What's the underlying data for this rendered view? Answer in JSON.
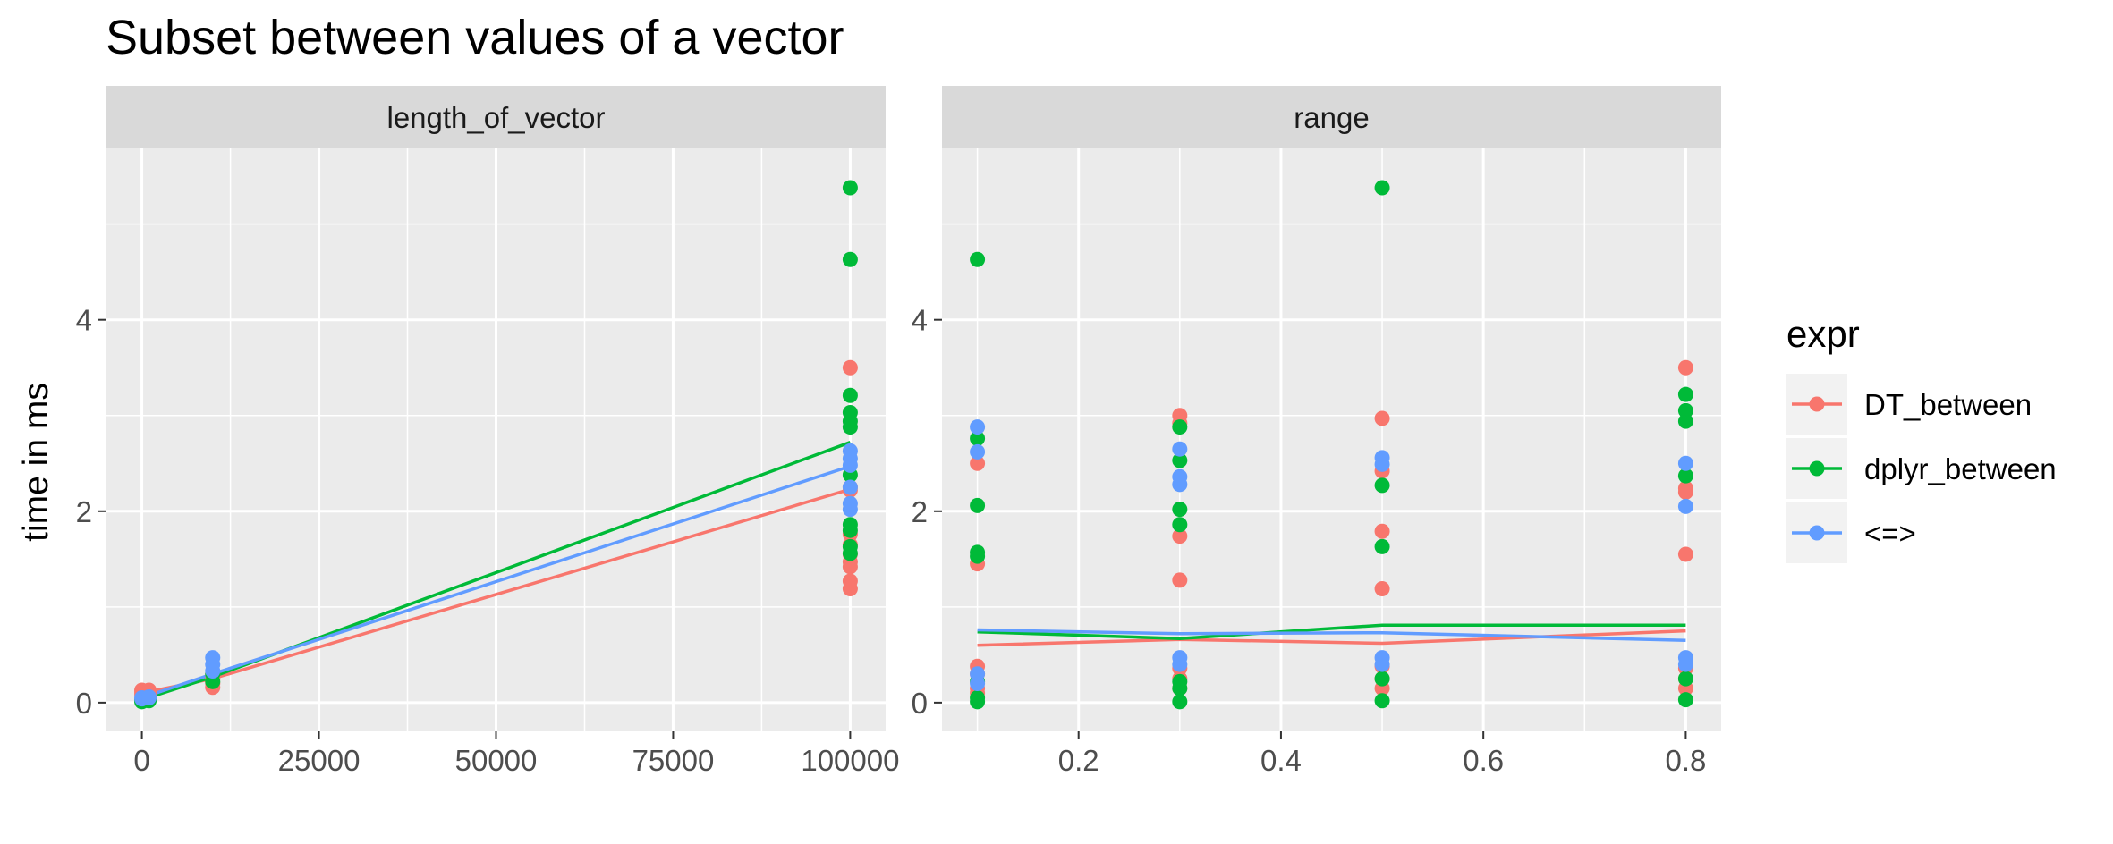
{
  "chart_data": {
    "type": "scatter",
    "title": "Subset between values of a vector",
    "ylabel": "time in ms",
    "grid": true,
    "legend": {
      "title": "expr",
      "position": "right",
      "entries": [
        "DT_between",
        "dplyr_between",
        "<=>"
      ]
    },
    "colors": {
      "DT_between": "#f8766d",
      "dplyr_between": "#00ba38",
      "<=>": "#619cff",
      "panel_background": "#ebebeb",
      "strip_background": "#d9d9d9",
      "gridline": "#ffffff"
    },
    "ylim": [
      -0.3,
      5.8
    ],
    "yticks": [
      {
        "value": 0,
        "label": "0"
      },
      {
        "value": 2,
        "label": "2"
      },
      {
        "value": 4,
        "label": "4"
      }
    ],
    "ymajor_grid": [
      0,
      2,
      4
    ],
    "yminor_grid": [
      1,
      3,
      5
    ],
    "panels": [
      {
        "strip": "length_of_vector",
        "xlim": [
          -5000,
          105000
        ],
        "xticks": [
          {
            "value": 0,
            "label": "0"
          },
          {
            "value": 25000,
            "label": "25000"
          },
          {
            "value": 50000,
            "label": "50000"
          },
          {
            "value": 75000,
            "label": "75000"
          },
          {
            "value": 100000,
            "label": "100000"
          }
        ],
        "xminor_grid": [
          12500,
          37500,
          62500,
          87500
        ],
        "series": [
          {
            "name": "DT_between",
            "points": [
              [
                0,
                0.13
              ],
              [
                0,
                0.12
              ],
              [
                0,
                0.1
              ],
              [
                0,
                0.08
              ],
              [
                1000,
                0.11
              ],
              [
                1000,
                0.13
              ],
              [
                1000,
                0.09
              ],
              [
                10000,
                0.3
              ],
              [
                10000,
                0.25
              ],
              [
                10000,
                0.2
              ],
              [
                10000,
                0.16
              ],
              [
                100000,
                3.5
              ],
              [
                100000,
                2.25
              ],
              [
                100000,
                2.22
              ],
              [
                100000,
                1.76
              ],
              [
                100000,
                1.65
              ],
              [
                100000,
                1.55
              ],
              [
                100000,
                1.47
              ],
              [
                100000,
                1.42
              ],
              [
                100000,
                1.27
              ],
              [
                100000,
                1.19
              ]
            ],
            "line": [
              [
                0,
                0.1
              ],
              [
                10000,
                0.25
              ],
              [
                100000,
                2.23
              ]
            ]
          },
          {
            "name": "dplyr_between",
            "points": [
              [
                0,
                0.03
              ],
              [
                0,
                0.01
              ],
              [
                0,
                0.02
              ],
              [
                1000,
                0.02
              ],
              [
                1000,
                0.04
              ],
              [
                1000,
                0.03
              ],
              [
                10000,
                0.22
              ],
              [
                10000,
                0.3
              ],
              [
                100000,
                5.38
              ],
              [
                100000,
                4.63
              ],
              [
                100000,
                3.21
              ],
              [
                100000,
                3.03
              ],
              [
                100000,
                2.94
              ],
              [
                100000,
                2.88
              ],
              [
                100000,
                2.38
              ],
              [
                100000,
                1.86
              ],
              [
                100000,
                1.8
              ],
              [
                100000,
                1.63
              ],
              [
                100000,
                1.56
              ]
            ],
            "line": [
              [
                0,
                0.03
              ],
              [
                10000,
                0.27
              ],
              [
                100000,
                2.72
              ]
            ]
          },
          {
            "name": "<=>",
            "points": [
              [
                0,
                0.05
              ],
              [
                0,
                0.04
              ],
              [
                1000,
                0.06
              ],
              [
                1000,
                0.05
              ],
              [
                10000,
                0.47
              ],
              [
                10000,
                0.4
              ],
              [
                10000,
                0.33
              ],
              [
                100000,
                2.63
              ],
              [
                100000,
                2.55
              ],
              [
                100000,
                2.48
              ],
              [
                100000,
                2.25
              ],
              [
                100000,
                2.08
              ],
              [
                100000,
                2.02
              ]
            ],
            "line": [
              [
                0,
                0.05
              ],
              [
                10000,
                0.3
              ],
              [
                100000,
                2.47
              ]
            ]
          }
        ]
      },
      {
        "strip": "range",
        "xlim": [
          0.065,
          0.835
        ],
        "xticks": [
          {
            "value": 0.2,
            "label": "0.2"
          },
          {
            "value": 0.4,
            "label": "0.4"
          },
          {
            "value": 0.6,
            "label": "0.6"
          },
          {
            "value": 0.8,
            "label": "0.8"
          }
        ],
        "xminor_grid": [
          0.1,
          0.3,
          0.5,
          0.7
        ],
        "series": [
          {
            "name": "DT_between",
            "points": [
              [
                0.1,
                2.5
              ],
              [
                0.1,
                1.45
              ],
              [
                0.1,
                0.38
              ],
              [
                0.1,
                0.3
              ],
              [
                0.1,
                0.15
              ],
              [
                0.1,
                0.1
              ],
              [
                0.3,
                3.0
              ],
              [
                0.3,
                2.92
              ],
              [
                0.3,
                1.74
              ],
              [
                0.3,
                1.28
              ],
              [
                0.3,
                0.36
              ],
              [
                0.3,
                0.25
              ],
              [
                0.3,
                0.15
              ],
              [
                0.5,
                2.97
              ],
              [
                0.5,
                2.42
              ],
              [
                0.5,
                1.79
              ],
              [
                0.5,
                1.19
              ],
              [
                0.5,
                0.38
              ],
              [
                0.5,
                0.25
              ],
              [
                0.5,
                0.15
              ],
              [
                0.8,
                3.5
              ],
              [
                0.8,
                2.24
              ],
              [
                0.8,
                2.2
              ],
              [
                0.8,
                1.55
              ],
              [
                0.8,
                0.36
              ],
              [
                0.8,
                0.25
              ],
              [
                0.8,
                0.15
              ]
            ],
            "line": [
              [
                0.1,
                0.6
              ],
              [
                0.3,
                0.66
              ],
              [
                0.5,
                0.62
              ],
              [
                0.8,
                0.75
              ]
            ]
          },
          {
            "name": "dplyr_between",
            "points": [
              [
                0.1,
                4.63
              ],
              [
                0.1,
                2.76
              ],
              [
                0.1,
                2.06
              ],
              [
                0.1,
                1.57
              ],
              [
                0.1,
                1.53
              ],
              [
                0.1,
                0.22
              ],
              [
                0.1,
                0.05
              ],
              [
                0.1,
                0.01
              ],
              [
                0.3,
                2.88
              ],
              [
                0.3,
                2.53
              ],
              [
                0.3,
                2.02
              ],
              [
                0.3,
                1.86
              ],
              [
                0.3,
                0.22
              ],
              [
                0.3,
                0.15
              ],
              [
                0.3,
                0.01
              ],
              [
                0.5,
                5.38
              ],
              [
                0.5,
                2.27
              ],
              [
                0.5,
                1.63
              ],
              [
                0.5,
                0.25
              ],
              [
                0.5,
                0.02
              ],
              [
                0.8,
                3.22
              ],
              [
                0.8,
                3.05
              ],
              [
                0.8,
                2.94
              ],
              [
                0.8,
                2.37
              ],
              [
                0.8,
                0.25
              ],
              [
                0.8,
                0.03
              ]
            ],
            "line": [
              [
                0.1,
                0.74
              ],
              [
                0.3,
                0.67
              ],
              [
                0.5,
                0.81
              ],
              [
                0.8,
                0.81
              ]
            ]
          },
          {
            "name": "<=>",
            "points": [
              [
                0.1,
                2.88
              ],
              [
                0.1,
                2.62
              ],
              [
                0.1,
                0.3
              ],
              [
                0.1,
                0.2
              ],
              [
                0.3,
                2.65
              ],
              [
                0.3,
                2.36
              ],
              [
                0.3,
                2.28
              ],
              [
                0.3,
                0.47
              ],
              [
                0.3,
                0.4
              ],
              [
                0.5,
                2.56
              ],
              [
                0.5,
                2.49
              ],
              [
                0.5,
                0.47
              ],
              [
                0.5,
                0.4
              ],
              [
                0.8,
                2.5
              ],
              [
                0.8,
                2.05
              ],
              [
                0.8,
                0.47
              ],
              [
                0.8,
                0.4
              ]
            ],
            "line": [
              [
                0.1,
                0.76
              ],
              [
                0.3,
                0.72
              ],
              [
                0.5,
                0.73
              ],
              [
                0.8,
                0.65
              ]
            ]
          }
        ]
      }
    ]
  }
}
